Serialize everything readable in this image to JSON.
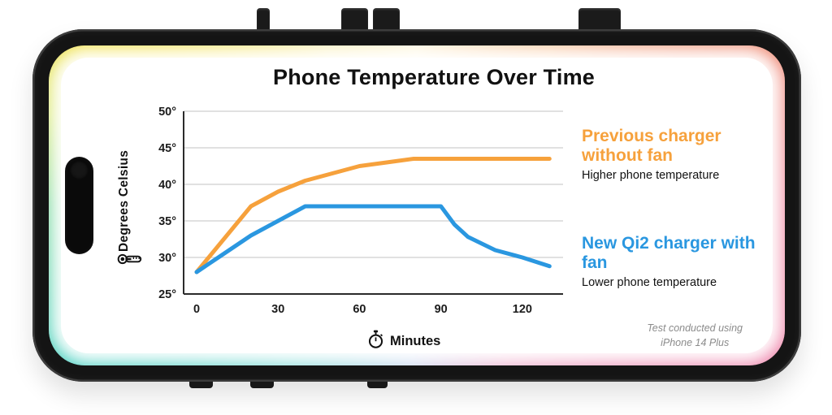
{
  "title": "Phone Temperature Over Time",
  "axes": {
    "y_label": "Degrees Celsius",
    "x_label": "Minutes"
  },
  "legend": {
    "series": [
      {
        "title": "Previous charger without fan",
        "subtitle": "Higher phone temperature",
        "color": "#F6A13C"
      },
      {
        "title": "New Qi2 charger with fan",
        "subtitle": "Lower phone temperature",
        "color": "#2A97E0"
      }
    ]
  },
  "footnote_line1": "Test conducted using",
  "footnote_line2": "iPhone 14 Plus",
  "icons": {
    "y_axis_icon": "thermometer",
    "x_axis_icon": "stopwatch"
  },
  "colors": {
    "series1": "#F6A13C",
    "series2": "#2A97E0",
    "grid": "#CFCFCF",
    "axis": "#2B2B2B",
    "text": "#111111"
  },
  "chart_data": {
    "type": "line",
    "title": "Phone Temperature Over Time",
    "xlabel": "Minutes",
    "ylabel": "Degrees Celsius",
    "x": [
      0,
      10,
      20,
      30,
      40,
      50,
      60,
      70,
      80,
      90,
      95,
      100,
      110,
      120,
      130
    ],
    "series": [
      {
        "name": "Previous charger without fan",
        "color": "#F6A13C",
        "values": [
          28,
          32.5,
          37,
          39,
          40.5,
          41.5,
          42.5,
          43,
          43.5,
          43.5,
          43.5,
          43.5,
          43.5,
          43.5,
          43.5
        ]
      },
      {
        "name": "New Qi2 charger with fan",
        "color": "#2A97E0",
        "values": [
          28,
          30.5,
          33,
          35,
          37,
          37,
          37,
          37,
          37,
          37,
          34.5,
          32.8,
          31,
          30,
          28.8
        ]
      }
    ],
    "xticks": [
      0,
      30,
      60,
      90,
      120
    ],
    "yticks": [
      25,
      30,
      35,
      40,
      45,
      50
    ],
    "ytick_suffix": "°",
    "xlim": [
      0,
      135
    ],
    "ylim": [
      25,
      50
    ],
    "grid": true,
    "grid_color": "#CFCFCF",
    "axis_color": "#2B2B2B",
    "legend_position": "right"
  }
}
